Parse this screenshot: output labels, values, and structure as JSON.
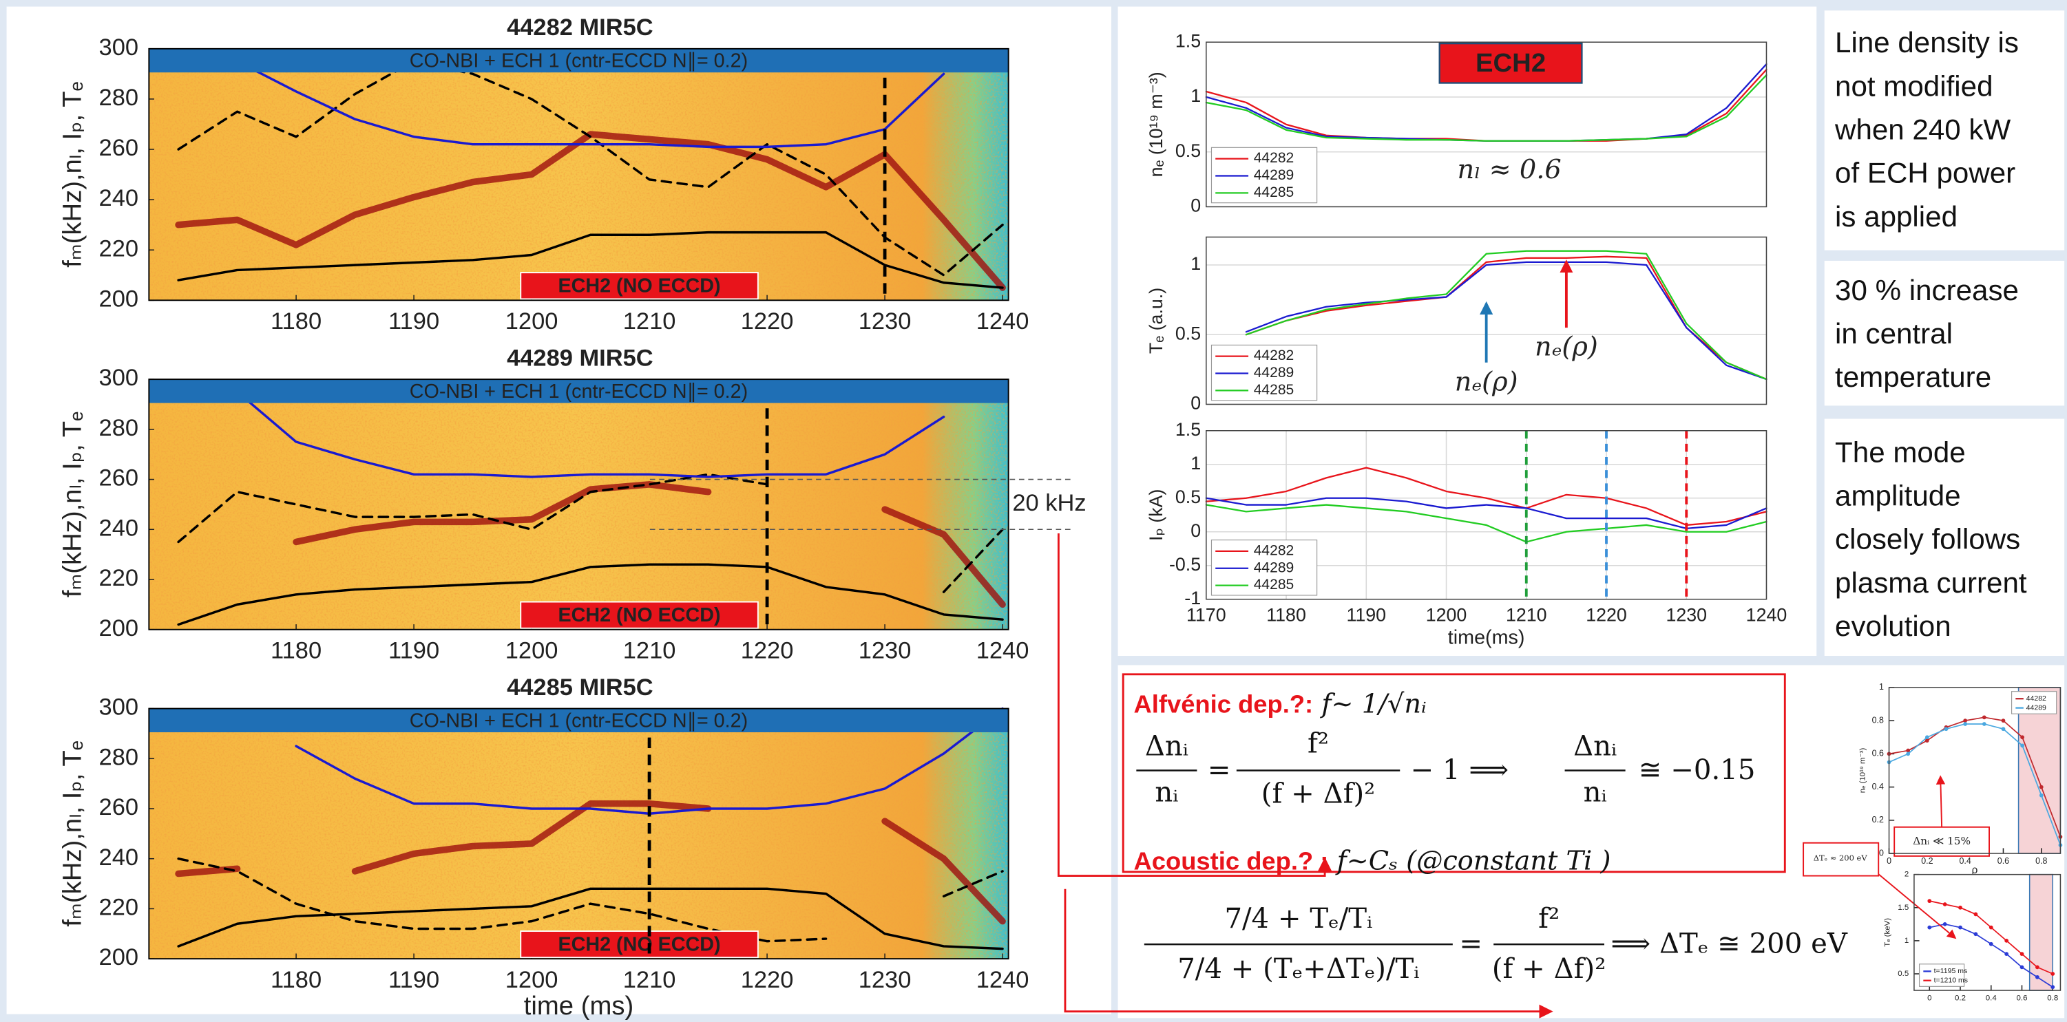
{
  "chart_data": [
    {
      "type": "spectrogram",
      "title": "44282 MIR5C",
      "banner": "CO-NBI + ECH 1 (cntr-ECCD N∥= 0.2)",
      "label": "ECH2 (NO ECCD)",
      "ylabel": "fₘ(kHz),nₗ, Iₚ, Tₑ",
      "x": [
        1170,
        1175,
        1180,
        1185,
        1190,
        1195,
        1200,
        1205,
        1210,
        1215,
        1220,
        1225,
        1230,
        1235,
        1240
      ],
      "series": [
        {
          "color": "#9e0f0f",
          "style": "ridge",
          "values": [
            230,
            232,
            222,
            234,
            241,
            247,
            250,
            266,
            264,
            262,
            256,
            245,
            258,
            232,
            205
          ]
        },
        {
          "color": "#000000",
          "style": "dashed",
          "values": [
            260,
            275,
            265,
            282,
            295,
            290,
            280,
            265,
            248,
            245,
            262,
            250,
            225,
            210,
            230
          ]
        },
        {
          "color": "#1a1ad0",
          "style": "solid",
          "values": [
            null,
            295,
            283,
            272,
            265,
            262,
            262,
            262,
            262,
            261,
            261,
            262,
            268,
            290,
            null
          ]
        },
        {
          "color": "#000000",
          "style": "solid",
          "values": [
            208,
            212,
            213,
            214,
            215,
            216,
            218,
            226,
            226,
            227,
            227,
            227,
            214,
            207,
            205
          ]
        }
      ],
      "vline": 1230,
      "xlim": [
        1167.5,
        1240.5
      ],
      "ylim": [
        200,
        300
      ],
      "xticks": [
        1180,
        1190,
        1200,
        1210,
        1220,
        1230,
        1240
      ],
      "yticks": [
        200,
        220,
        240,
        260,
        280,
        300
      ]
    },
    {
      "type": "spectrogram",
      "title": "44289 MIR5C",
      "banner": "CO-NBI + ECH 1 (cntr-ECCD N∥= 0.2)",
      "label": "ECH2 (NO ECCD)",
      "ylabel": "fₘ(kHz),nₗ, Iₚ, Tₑ",
      "x": [
        1170,
        1175,
        1180,
        1185,
        1190,
        1195,
        1200,
        1205,
        1210,
        1215,
        1220,
        1225,
        1230,
        1235,
        1240
      ],
      "series": [
        {
          "color": "#9e0f0f",
          "style": "ridge",
          "values": [
            null,
            null,
            235,
            240,
            243,
            243,
            244,
            256,
            258,
            255,
            null,
            null,
            248,
            238,
            210
          ]
        },
        {
          "color": "#000000",
          "style": "dashed",
          "values": [
            235,
            255,
            250,
            245,
            245,
            246,
            240,
            255,
            258,
            262,
            258,
            null,
            null,
            215,
            240
          ]
        },
        {
          "color": "#1a1ad0",
          "style": "solid",
          "values": [
            null,
            295,
            275,
            268,
            262,
            262,
            261,
            262,
            262,
            261,
            262,
            262,
            270,
            285,
            null
          ]
        },
        {
          "color": "#000000",
          "style": "solid",
          "values": [
            202,
            210,
            214,
            216,
            217,
            218,
            219,
            225,
            226,
            226,
            225,
            217,
            214,
            206,
            204
          ]
        }
      ],
      "vline": 1220,
      "hlines": [
        260,
        240
      ],
      "hline_label": "20 kHz",
      "xlim": [
        1167.5,
        1240.5
      ],
      "ylim": [
        200,
        300
      ],
      "xticks": [
        1180,
        1190,
        1200,
        1210,
        1220,
        1230,
        1240
      ],
      "yticks": [
        200,
        220,
        240,
        260,
        280,
        300
      ]
    },
    {
      "type": "spectrogram",
      "title": "44285 MIR5C",
      "banner": "CO-NBI + ECH 1 (cntr-ECCD N∥= 0.2)",
      "label": "ECH2 (NO ECCD)",
      "ylabel": "fₘ(kHz),nₗ, Iₚ, Tₑ",
      "xlabel": "time (ms)",
      "x": [
        1170,
        1175,
        1180,
        1185,
        1190,
        1195,
        1200,
        1205,
        1210,
        1215,
        1220,
        1225,
        1230,
        1235,
        1240
      ],
      "series": [
        {
          "color": "#9e0f0f",
          "style": "ridge",
          "values": [
            234,
            236,
            null,
            235,
            242,
            245,
            246,
            262,
            262,
            260,
            null,
            null,
            255,
            240,
            215
          ]
        },
        {
          "color": "#000000",
          "style": "dashed",
          "values": [
            240,
            235,
            222,
            215,
            212,
            212,
            215,
            222,
            218,
            212,
            207,
            208,
            null,
            225,
            235
          ]
        },
        {
          "color": "#1a1ad0",
          "style": "solid",
          "values": [
            null,
            null,
            285,
            272,
            262,
            262,
            260,
            260,
            258,
            260,
            260,
            262,
            268,
            282,
            300
          ]
        },
        {
          "color": "#000000",
          "style": "solid",
          "values": [
            205,
            214,
            217,
            218,
            219,
            220,
            221,
            228,
            228,
            228,
            228,
            226,
            210,
            205,
            204
          ]
        }
      ],
      "vline": 1210,
      "xlim": [
        1167.5,
        1240.5
      ],
      "ylim": [
        200,
        300
      ],
      "xticks": [
        1180,
        1190,
        1200,
        1210,
        1220,
        1230,
        1240
      ],
      "yticks": [
        200,
        220,
        240,
        260,
        280,
        300
      ]
    },
    {
      "type": "line",
      "ylabel": "nₑ (10¹⁹ m⁻³)",
      "box_label": "ECH2",
      "note": "nₗ ≈ 0.6",
      "x": [
        1170,
        1175,
        1180,
        1185,
        1190,
        1195,
        1200,
        1205,
        1210,
        1215,
        1220,
        1225,
        1230,
        1235,
        1240
      ],
      "series": [
        {
          "name": "44282",
          "color": "#e8141b",
          "values": [
            1.05,
            0.95,
            0.75,
            0.65,
            0.63,
            0.62,
            0.62,
            0.6,
            0.6,
            0.6,
            0.6,
            0.62,
            0.65,
            0.85,
            1.25
          ]
        },
        {
          "name": "44289",
          "color": "#1a1ad0",
          "values": [
            1.0,
            0.9,
            0.72,
            0.64,
            0.63,
            0.62,
            0.61,
            0.6,
            0.6,
            0.6,
            0.61,
            0.62,
            0.66,
            0.9,
            1.3
          ]
        },
        {
          "name": "44285",
          "color": "#22cc22",
          "values": [
            0.95,
            0.88,
            0.7,
            0.63,
            0.62,
            0.61,
            0.61,
            0.6,
            0.6,
            0.6,
            0.61,
            0.62,
            0.64,
            0.82,
            1.2
          ]
        }
      ],
      "xlim": [
        1170,
        1240
      ],
      "ylim": [
        0,
        1.5
      ],
      "yticks": [
        0,
        0.5,
        1,
        1.5
      ],
      "grid": true,
      "legend": "lower left"
    },
    {
      "type": "line",
      "ylabel": "Tₑ (a.u.)",
      "x": [
        1170,
        1175,
        1180,
        1185,
        1190,
        1195,
        1200,
        1205,
        1210,
        1215,
        1220,
        1225,
        1230,
        1235,
        1240
      ],
      "series": [
        {
          "name": "44282",
          "color": "#e8141b",
          "values": [
            null,
            0.5,
            0.6,
            0.67,
            0.71,
            0.74,
            0.77,
            1.02,
            1.05,
            1.05,
            1.06,
            1.05,
            0.55,
            0.3,
            0.18
          ]
        },
        {
          "name": "44289",
          "color": "#1a1ad0",
          "values": [
            null,
            0.52,
            0.63,
            0.7,
            0.73,
            0.75,
            0.77,
            1.0,
            1.02,
            1.02,
            1.02,
            1.0,
            0.55,
            0.28,
            0.18
          ]
        },
        {
          "name": "44285",
          "color": "#22cc22",
          "values": [
            null,
            0.5,
            0.6,
            0.68,
            0.72,
            0.76,
            0.79,
            1.08,
            1.1,
            1.1,
            1.1,
            1.08,
            0.58,
            0.3,
            0.18
          ]
        }
      ],
      "arrows": [
        {
          "x": 1205,
          "y": [
            0.3,
            0.72
          ],
          "color": "#1f77b4",
          "label": "nₑ(ρ)"
        },
        {
          "x": 1215,
          "y": [
            0.55,
            1.02
          ],
          "color": "#e8141b",
          "label": "nₑ(ρ)"
        }
      ],
      "xlim": [
        1170,
        1240
      ],
      "ylim": [
        0,
        1.2
      ],
      "yticks": [
        0,
        0.5,
        1
      ],
      "grid": true,
      "legend": "lower left"
    },
    {
      "type": "line",
      "ylabel": "Iₚ (kA)",
      "xlabel": "time(ms)",
      "x": [
        1170,
        1175,
        1180,
        1185,
        1190,
        1195,
        1200,
        1205,
        1210,
        1215,
        1220,
        1225,
        1230,
        1235,
        1240
      ],
      "series": [
        {
          "name": "44282",
          "color": "#e8141b",
          "values": [
            0.45,
            0.5,
            0.6,
            0.8,
            0.95,
            0.8,
            0.6,
            0.5,
            0.35,
            0.55,
            0.5,
            0.35,
            0.1,
            0.15,
            0.3
          ]
        },
        {
          "name": "44289",
          "color": "#1a1ad0",
          "values": [
            0.5,
            0.4,
            0.4,
            0.5,
            0.5,
            0.45,
            0.35,
            0.4,
            0.35,
            0.2,
            0.2,
            0.2,
            0.05,
            0.1,
            0.35
          ]
        },
        {
          "name": "44285",
          "color": "#22cc22",
          "values": [
            0.4,
            0.3,
            0.35,
            0.4,
            0.35,
            0.3,
            0.2,
            0.1,
            -0.15,
            0.0,
            0.05,
            0.1,
            0.0,
            0.0,
            0.15
          ]
        }
      ],
      "vlines": [
        {
          "x": 1210,
          "color": "#1f9e3a"
        },
        {
          "x": 1220,
          "color": "#3a8fd8"
        },
        {
          "x": 1230,
          "color": "#e8141b"
        }
      ],
      "xlim": [
        1170,
        1240
      ],
      "ylim": [
        -1,
        1.5
      ],
      "xticks": [
        1170,
        1180,
        1190,
        1200,
        1210,
        1220,
        1230,
        1240
      ],
      "yticks": [
        -1,
        -0.5,
        0,
        0.5,
        1,
        1.5
      ],
      "grid": true,
      "legend": "lower left"
    },
    {
      "type": "line",
      "ylabel": "nₑ (10¹⁹ m⁻³)",
      "xlabel": "ρ",
      "note": "Δnᵢ ≪ 15%",
      "markers": true,
      "span": [
        0.68,
        0.9
      ],
      "x": [
        0,
        0.1,
        0.2,
        0.3,
        0.4,
        0.5,
        0.6,
        0.7,
        0.8,
        0.9
      ],
      "series": [
        {
          "name": "44282",
          "color": "#c0282d",
          "values": [
            0.6,
            0.62,
            0.68,
            0.76,
            0.8,
            0.82,
            0.8,
            0.7,
            0.4,
            0.1
          ]
        },
        {
          "name": "44289",
          "color": "#4aa8e0",
          "values": [
            0.55,
            0.6,
            0.7,
            0.75,
            0.78,
            0.78,
            0.75,
            0.65,
            0.35,
            0.05
          ]
        }
      ],
      "xlim": [
        0,
        0.9
      ],
      "ylim": [
        0,
        1
      ],
      "xticks": [
        0,
        0.2,
        0.4,
        0.6,
        0.8
      ],
      "yticks": [
        0,
        0.2,
        0.4,
        0.6,
        0.8,
        1
      ],
      "legend": "upper right"
    },
    {
      "type": "line",
      "ylabel": "Tₑ (keV)",
      "note": "ΔTₑ ≈ 200 eV",
      "markers": true,
      "span": [
        0.65,
        0.8
      ],
      "x": [
        0,
        0.1,
        0.2,
        0.3,
        0.4,
        0.5,
        0.6,
        0.7,
        0.8
      ],
      "series": [
        {
          "name": "t=1195 ms",
          "color": "#2b3bd6",
          "values": [
            1.2,
            1.25,
            1.2,
            1.1,
            0.95,
            0.8,
            0.6,
            0.45,
            0.3
          ]
        },
        {
          "name": "t=1210 ms",
          "color": "#e8141b",
          "values": [
            1.6,
            1.55,
            1.5,
            1.4,
            1.2,
            1.0,
            0.8,
            0.6,
            0.5
          ]
        }
      ],
      "xlim": [
        -0.1,
        0.85
      ],
      "ylim": [
        0.25,
        2
      ],
      "xticks": [
        0,
        0.2,
        0.4,
        0.6,
        0.8
      ],
      "yticks": [
        0.5,
        1,
        1.5,
        2
      ],
      "legend": "lower left"
    }
  ],
  "text_boxes": [
    [
      "Line density is",
      "not modified",
      "when 240 kW",
      "of ECH power",
      "is applied"
    ],
    [
      "30 % increase",
      "in central",
      "temperature"
    ],
    [
      "The mode",
      "amplitude",
      "closely follows",
      "plasma current",
      "evolution"
    ]
  ],
  "equations": [
    {
      "label": "Alfvénic dep.?:",
      "relation": " f∼ 1/√nᵢ",
      "parts": [
        "Δnᵢ",
        "nᵢ",
        "=",
        "f²",
        "(f + Δf)²",
        "− 1 ⟹",
        "Δnᵢ",
        "nᵢ",
        "≅ −0.15"
      ]
    },
    {
      "label": "Acoustic dep.? :",
      "relation": " f∼Cₛ (@constant Ti )",
      "parts": [
        "7/4 + Tₑ/Tᵢ",
        "7/4 + (Tₑ+ΔTₑ)/Tᵢ",
        "=",
        "f²",
        "(f + Δf)²",
        "⟹ ΔTₑ ≅ 200 eV"
      ]
    }
  ]
}
